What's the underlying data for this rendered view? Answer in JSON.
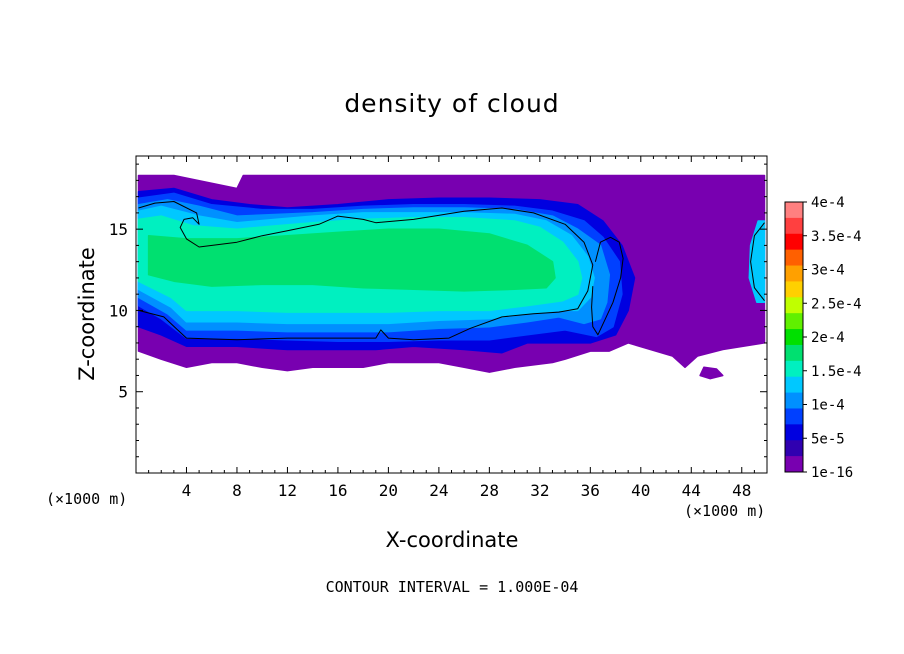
{
  "chart_data": {
    "type": "heatmap",
    "title": "density of cloud",
    "xlabel": "X-coordinate",
    "ylabel": "Z-coordinate",
    "x_unit_label": "(×1000 m)",
    "y_unit_label": "(×1000 m)",
    "footer": "CONTOUR INTERVAL = 1.000E-04",
    "xlim": [
      0,
      50
    ],
    "ylim": [
      0,
      19.5
    ],
    "x_ticks": [
      {
        "value": 4,
        "label": "4"
      },
      {
        "value": 8,
        "label": "8"
      },
      {
        "value": 12,
        "label": "12"
      },
      {
        "value": 16,
        "label": "16"
      },
      {
        "value": 20,
        "label": "20"
      },
      {
        "value": 24,
        "label": "24"
      },
      {
        "value": 28,
        "label": "28"
      },
      {
        "value": 32,
        "label": "32"
      },
      {
        "value": 36,
        "label": "36"
      },
      {
        "value": 40,
        "label": "40"
      },
      {
        "value": 44,
        "label": "44"
      },
      {
        "value": 48,
        "label": "48"
      }
    ],
    "y_ticks": [
      {
        "value": 5,
        "label": "5"
      },
      {
        "value": 10,
        "label": "10"
      },
      {
        "value": 15,
        "label": "15"
      }
    ],
    "colorbar": {
      "labels": [
        "4e-4",
        "3.5e-4",
        "3e-4",
        "2.5e-4",
        "2e-4",
        "1.5e-4",
        "1e-4",
        "5e-5",
        "1e-16"
      ],
      "bands": [
        {
          "color": "#FF8080",
          "range": "3.75e-4 – 4e-4"
        },
        {
          "color": "#FF4040",
          "range": "3.5e-4 – 3.75e-4"
        },
        {
          "color": "#FF0000",
          "range": "3.25e-4 – 3.5e-4"
        },
        {
          "color": "#FF6000",
          "range": "3e-4 – 3.25e-4"
        },
        {
          "color": "#FFA000",
          "range": "2.75e-4 – 3e-4"
        },
        {
          "color": "#FFD000",
          "range": "2.5e-4 – 2.75e-4"
        },
        {
          "color": "#C0FF00",
          "range": "2.25e-4 – 2.5e-4"
        },
        {
          "color": "#60F000",
          "range": "2e-4 – 2.25e-4"
        },
        {
          "color": "#00E000",
          "range": "1.75e-4 – 2e-4"
        },
        {
          "color": "#00E070",
          "range": "1.5e-4 – 1.75e-4"
        },
        {
          "color": "#00F0C0",
          "range": "1.25e-4 – 1.5e-4"
        },
        {
          "color": "#00C8FF",
          "range": "1e-4 – 1.25e-4"
        },
        {
          "color": "#0090FF",
          "range": "7.5e-5 – 1e-4"
        },
        {
          "color": "#0040FF",
          "range": "5e-5 – 7.5e-5"
        },
        {
          "color": "#0000E0",
          "range": "2.5e-5 – 5e-5"
        },
        {
          "color": "#3000B0",
          "range": "1e-16 – 2.5e-5"
        },
        {
          "color": "#7800B0",
          "range": "1e-16"
        }
      ]
    },
    "regions": [
      {
        "name": "outer-cloud-purple",
        "color": "#7800B0",
        "level": "1e-16",
        "points": [
          [
            0.2,
            18.3
          ],
          [
            3,
            18.3
          ],
          [
            8,
            17.5
          ],
          [
            8.5,
            18.3
          ],
          [
            49.8,
            18.3
          ],
          [
            49.8,
            8
          ],
          [
            46.5,
            7.6
          ],
          [
            44.5,
            7.2
          ],
          [
            43.5,
            6.5
          ],
          [
            42.5,
            7.2
          ],
          [
            39,
            8
          ],
          [
            37.5,
            7.5
          ],
          [
            36,
            7.5
          ],
          [
            34,
            7
          ],
          [
            33,
            6.8
          ],
          [
            30,
            6.5
          ],
          [
            28,
            6.2
          ],
          [
            26,
            6.5
          ],
          [
            24,
            6.8
          ],
          [
            20,
            6.8
          ],
          [
            18,
            6.5
          ],
          [
            16,
            6.5
          ],
          [
            14,
            6.5
          ],
          [
            12,
            6.3
          ],
          [
            10,
            6.5
          ],
          [
            8,
            6.8
          ],
          [
            6,
            6.8
          ],
          [
            4,
            6.5
          ],
          [
            2,
            7
          ],
          [
            0.2,
            7.5
          ]
        ]
      },
      {
        "name": "cloud-dark-blue",
        "color": "#0000E0",
        "level": "2.5e-5",
        "points": [
          [
            0.2,
            17.3
          ],
          [
            3,
            17.5
          ],
          [
            6,
            16.8
          ],
          [
            9,
            16.5
          ],
          [
            12,
            16.3
          ],
          [
            16,
            16.5
          ],
          [
            20,
            16.8
          ],
          [
            24,
            16.9
          ],
          [
            28,
            16.9
          ],
          [
            32,
            16.8
          ],
          [
            35,
            16.5
          ],
          [
            37,
            15.5
          ],
          [
            38.5,
            14
          ],
          [
            39.5,
            12
          ],
          [
            39,
            10
          ],
          [
            38,
            8.5
          ],
          [
            36,
            8
          ],
          [
            33,
            8
          ],
          [
            31,
            8
          ],
          [
            29,
            7.4
          ],
          [
            26,
            7.6
          ],
          [
            22,
            7.8
          ],
          [
            19,
            7.6
          ],
          [
            16,
            7.6
          ],
          [
            12,
            7.6
          ],
          [
            8,
            7.8
          ],
          [
            4,
            7.8
          ],
          [
            2,
            8.5
          ],
          [
            0.2,
            9
          ]
        ]
      },
      {
        "name": "cloud-mid-blue",
        "color": "#0040FF",
        "level": "5e-5",
        "points": [
          [
            0.2,
            16.9
          ],
          [
            3,
            17.2
          ],
          [
            6,
            16.5
          ],
          [
            10,
            16.2
          ],
          [
            14,
            16.2
          ],
          [
            18,
            16.4
          ],
          [
            22,
            16.5
          ],
          [
            26,
            16.5
          ],
          [
            30,
            16.4
          ],
          [
            33,
            16.1
          ],
          [
            35.5,
            15.5
          ],
          [
            37,
            14.5
          ],
          [
            38.3,
            13
          ],
          [
            38.5,
            11
          ],
          [
            37.8,
            9
          ],
          [
            36.5,
            8.4
          ],
          [
            34,
            8.8
          ],
          [
            31,
            8.5
          ],
          [
            28,
            8.2
          ],
          [
            24,
            8.2
          ],
          [
            20,
            8.1
          ],
          [
            16,
            8.1
          ],
          [
            12,
            8.2
          ],
          [
            8,
            8.3
          ],
          [
            4,
            8.3
          ],
          [
            2,
            9.5
          ],
          [
            0.2,
            10.3
          ]
        ]
      },
      {
        "name": "cloud-light-blue",
        "color": "#0090FF",
        "level": "7.5e-5",
        "points": [
          [
            0.2,
            16.5
          ],
          [
            2.5,
            16.8
          ],
          [
            5,
            16.4
          ],
          [
            8,
            15.8
          ],
          [
            11,
            15.9
          ],
          [
            14,
            16
          ],
          [
            18,
            16.2
          ],
          [
            22,
            16.3
          ],
          [
            26,
            16.3
          ],
          [
            30,
            16.2
          ],
          [
            33,
            15.8
          ],
          [
            35,
            15
          ],
          [
            36.8,
            14
          ],
          [
            37.5,
            12.2
          ],
          [
            37.3,
            10.5
          ],
          [
            36.8,
            9.5
          ],
          [
            35.5,
            9.2
          ],
          [
            33.5,
            9.6
          ],
          [
            31,
            9.3
          ],
          [
            28,
            9
          ],
          [
            24,
            8.9
          ],
          [
            20,
            8.7
          ],
          [
            16,
            8.7
          ],
          [
            12,
            8.7
          ],
          [
            8,
            8.8
          ],
          [
            4,
            8.8
          ],
          [
            2.5,
            9.8
          ],
          [
            0.2,
            10.8
          ]
        ]
      },
      {
        "name": "cloud-cyan-blue",
        "color": "#00C8FF",
        "level": "1e-4",
        "points": [
          [
            0.2,
            16.1
          ],
          [
            2,
            16.4
          ],
          [
            5,
            15.8
          ],
          [
            8,
            15.4
          ],
          [
            11,
            15.6
          ],
          [
            14,
            15.8
          ],
          [
            18,
            16
          ],
          [
            22,
            16
          ],
          [
            26,
            16
          ],
          [
            30,
            15.9
          ],
          [
            32.5,
            15.5
          ],
          [
            34.5,
            14.6
          ],
          [
            35.8,
            13.3
          ],
          [
            36.3,
            12
          ],
          [
            36,
            10.8
          ],
          [
            35,
            10
          ],
          [
            33.5,
            10
          ],
          [
            31,
            9.8
          ],
          [
            28,
            9.5
          ],
          [
            24,
            9.4
          ],
          [
            20,
            9.2
          ],
          [
            16,
            9.2
          ],
          [
            12,
            9.2
          ],
          [
            8,
            9.3
          ],
          [
            4,
            9.3
          ],
          [
            2.8,
            10.2
          ],
          [
            0.2,
            11.3
          ]
        ]
      },
      {
        "name": "cloud-cyan",
        "color": "#00F0C0",
        "level": "1.25e-4",
        "points": [
          [
            0.2,
            15.6
          ],
          [
            2,
            15.8
          ],
          [
            4.5,
            15.2
          ],
          [
            8,
            15
          ],
          [
            11,
            15.2
          ],
          [
            14,
            15.4
          ],
          [
            18,
            15.6
          ],
          [
            22,
            15.7
          ],
          [
            26,
            15.7
          ],
          [
            30,
            15.5
          ],
          [
            32,
            15.1
          ],
          [
            33.8,
            14.2
          ],
          [
            35,
            13
          ],
          [
            35.3,
            12
          ],
          [
            35,
            11
          ],
          [
            33.8,
            10.6
          ],
          [
            31,
            10.3
          ],
          [
            28,
            10
          ],
          [
            24,
            10
          ],
          [
            20,
            9.9
          ],
          [
            16,
            9.9
          ],
          [
            12,
            9.9
          ],
          [
            8,
            10
          ],
          [
            4,
            10
          ],
          [
            2.8,
            10.8
          ],
          [
            0.2,
            11.8
          ]
        ]
      },
      {
        "name": "cloud-green-core",
        "color": "#00E070",
        "level": "1.5e-4",
        "points": [
          [
            1,
            14.6
          ],
          [
            4,
            14.4
          ],
          [
            8,
            14.4
          ],
          [
            12,
            14.6
          ],
          [
            16,
            14.8
          ],
          [
            20,
            15
          ],
          [
            24,
            15
          ],
          [
            28,
            14.7
          ],
          [
            31,
            14
          ],
          [
            33,
            13
          ],
          [
            33.2,
            12
          ],
          [
            32.5,
            11.4
          ],
          [
            30,
            11.3
          ],
          [
            26,
            11.2
          ],
          [
            22,
            11.3
          ],
          [
            18,
            11.4
          ],
          [
            14,
            11.6
          ],
          [
            10,
            11.6
          ],
          [
            6,
            11.5
          ],
          [
            3,
            11.8
          ],
          [
            1,
            12.2
          ]
        ]
      },
      {
        "name": "right-edge-cloud-cyan",
        "color": "#00C8FF",
        "level": "1e-4",
        "points": [
          [
            48.7,
            14
          ],
          [
            49.3,
            15.5
          ],
          [
            49.8,
            15.5
          ],
          [
            49.8,
            10.5
          ],
          [
            49.2,
            10.5
          ],
          [
            48.6,
            12
          ]
        ]
      },
      {
        "name": "bottom-blob-purple",
        "color": "#7800B0",
        "level": "1e-16",
        "points": [
          [
            45,
            6.5
          ],
          [
            46,
            6.4
          ],
          [
            46.5,
            6
          ],
          [
            45.5,
            5.8
          ],
          [
            44.7,
            6
          ]
        ]
      }
    ],
    "contour_lines": [
      {
        "name": "contour-1e-4-main",
        "level": "1e-4",
        "points": [
          [
            0.2,
            16.3
          ],
          [
            1.5,
            16.6
          ],
          [
            3,
            16.7
          ],
          [
            4.8,
            16
          ],
          [
            5,
            15.3
          ],
          [
            4.5,
            15.7
          ],
          [
            3.8,
            15.6
          ],
          [
            3.5,
            15.1
          ],
          [
            4,
            14.4
          ],
          [
            5,
            13.9
          ],
          [
            8,
            14.2
          ],
          [
            10,
            14.6
          ],
          [
            12,
            14.9
          ],
          [
            14.5,
            15.3
          ],
          [
            16,
            15.8
          ],
          [
            18,
            15.6
          ],
          [
            19,
            15.4
          ],
          [
            22,
            15.6
          ],
          [
            26,
            16.1
          ],
          [
            29,
            16.3
          ],
          [
            31.5,
            16
          ],
          [
            34,
            15.3
          ],
          [
            35.5,
            14.2
          ],
          [
            36.2,
            12.8
          ],
          [
            35.8,
            11.2
          ],
          [
            35,
            10.1
          ],
          [
            33.5,
            9.9
          ],
          [
            31.5,
            9.8
          ],
          [
            29,
            9.6
          ],
          [
            26.5,
            8.9
          ],
          [
            24.8,
            8.3
          ],
          [
            22,
            8.2
          ],
          [
            20,
            8.3
          ],
          [
            19.4,
            8.8
          ],
          [
            19,
            8.3
          ],
          [
            16,
            8.3
          ],
          [
            12,
            8.3
          ],
          [
            8,
            8.2
          ],
          [
            4,
            8.3
          ],
          [
            3.3,
            8.8
          ],
          [
            2.2,
            9.6
          ],
          [
            0.2,
            10
          ]
        ]
      },
      {
        "name": "contour-1e-4-loop",
        "level": "1e-4",
        "points": [
          [
            36.4,
            13
          ],
          [
            36.8,
            14.2
          ],
          [
            37.6,
            14.5
          ],
          [
            38.3,
            14.2
          ],
          [
            38.6,
            13.2
          ],
          [
            38.4,
            12
          ],
          [
            37.8,
            10.5
          ],
          [
            37.2,
            9.5
          ],
          [
            36.6,
            8.5
          ],
          [
            36.2,
            9
          ],
          [
            36.1,
            10.2
          ],
          [
            36.2,
            11.5
          ]
        ]
      },
      {
        "name": "contour-1e-4-right",
        "level": "1e-4",
        "points": [
          [
            49.8,
            15.4
          ],
          [
            49,
            14.6
          ],
          [
            48.7,
            13
          ],
          [
            49,
            11.4
          ],
          [
            49.8,
            10.6
          ]
        ]
      }
    ]
  }
}
